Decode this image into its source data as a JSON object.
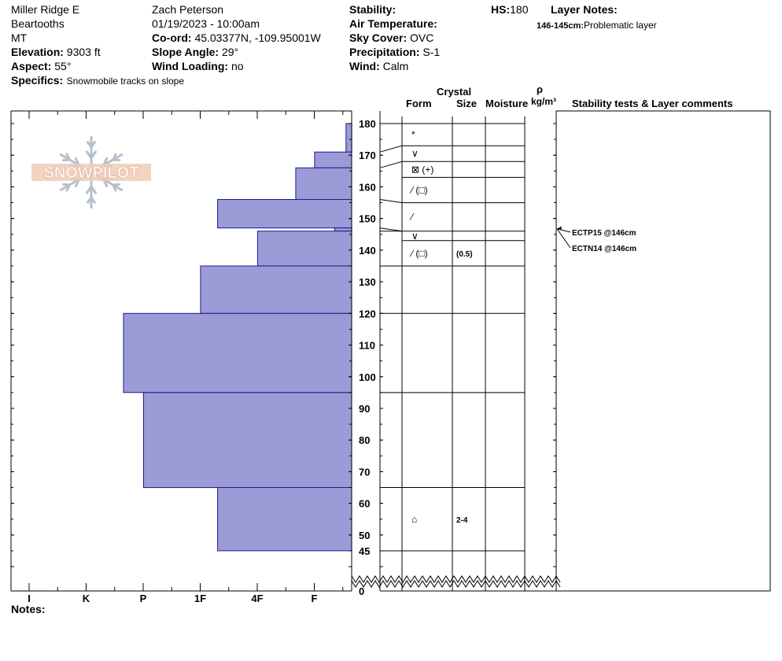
{
  "header": {
    "location": "Miller Ridge E",
    "range": "Beartooths",
    "state": "MT",
    "elevation_label": "Elevation:",
    "elevation": "9303 ft",
    "aspect_label": "Aspect:",
    "aspect": "55°",
    "specifics_label": "Specifics:",
    "specifics": "Snowmobile tracks on slope",
    "observer": "Zach Peterson",
    "datetime": "01/19/2023 - 10:00am",
    "coord_label": "Co-ord:",
    "coord": "45.03377N, -109.95001W",
    "slope_label": "Slope Angle:",
    "slope": "29°",
    "wind_loading_label": "Wind Loading:",
    "wind_loading": "no",
    "stability_label": "Stability:",
    "air_temp_label": "Air Temperature:",
    "sky_label": "Sky Cover:",
    "sky": "OVC",
    "precip_label": "Precipitation:",
    "precip": "S-1",
    "wind_label": "Wind:",
    "wind": "Calm",
    "hs_label": "HS:",
    "hs": "180",
    "layer_notes_label": "Layer Notes:",
    "layer_note_range": "146-145cm:",
    "layer_note_text": "Problematic layer"
  },
  "logo_text": "SNOWPILOT",
  "columns": {
    "crystal": "Crystal",
    "form": "Form",
    "size": "Size",
    "moisture": "Moisture",
    "rho": "ρ",
    "density_unit": "kg/m³",
    "comments": "Stability tests & Layer comments"
  },
  "notes_label": "Notes:",
  "chart_data": {
    "type": "snow-profile",
    "hardness_scale": [
      "I",
      "K",
      "P",
      "1F",
      "4F",
      "F"
    ],
    "depth_ticks": [
      180,
      170,
      160,
      150,
      140,
      130,
      120,
      110,
      100,
      90,
      80,
      70,
      60,
      50,
      45,
      0
    ],
    "hardness_layers": [
      {
        "top": 180,
        "bottom": 171,
        "hardness": 0.1
      },
      {
        "top": 171,
        "bottom": 166,
        "hardness": 0.65
      },
      {
        "top": 166,
        "bottom": 156,
        "hardness": 0.98
      },
      {
        "top": 156,
        "bottom": 147,
        "hardness": 2.35
      },
      {
        "top": 147,
        "bottom": 146,
        "hardness": 0.3
      },
      {
        "top": 146,
        "bottom": 135,
        "hardness": 1.65
      },
      {
        "top": 135,
        "bottom": 120,
        "hardness": 2.65
      },
      {
        "top": 120,
        "bottom": 95,
        "hardness": 4.0
      },
      {
        "top": 95,
        "bottom": 65,
        "hardness": 3.65
      },
      {
        "top": 65,
        "bottom": 45,
        "hardness": 2.35
      }
    ],
    "grain_layers": [
      {
        "top": 180,
        "bottom": 173,
        "form": "*",
        "size": ""
      },
      {
        "top": 173,
        "bottom": 168,
        "form": "∨",
        "size": ""
      },
      {
        "top": 168,
        "bottom": 163,
        "form": "⊠ (+)",
        "size": ""
      },
      {
        "top": 163,
        "bottom": 155,
        "form": "⁄ (□)",
        "size": ""
      },
      {
        "top": 155,
        "bottom": 146,
        "form": "⁄",
        "size": ""
      },
      {
        "top": 146,
        "bottom": 143,
        "form": "∨",
        "size": ""
      },
      {
        "top": 143,
        "bottom": 135,
        "form": "⁄ (□)",
        "size": "(0.5)"
      },
      {
        "top": 135,
        "bottom": 120,
        "form": "",
        "size": ""
      },
      {
        "top": 120,
        "bottom": 95,
        "form": "",
        "size": ""
      },
      {
        "top": 95,
        "bottom": 65,
        "form": "",
        "size": ""
      },
      {
        "top": 65,
        "bottom": 45,
        "form": "⌂",
        "size": "2-4"
      }
    ],
    "tests": [
      {
        "label": "ECTP15 @146cm",
        "depth": 146
      },
      {
        "label": "ECTN14 @146cm",
        "depth": 146
      }
    ]
  }
}
